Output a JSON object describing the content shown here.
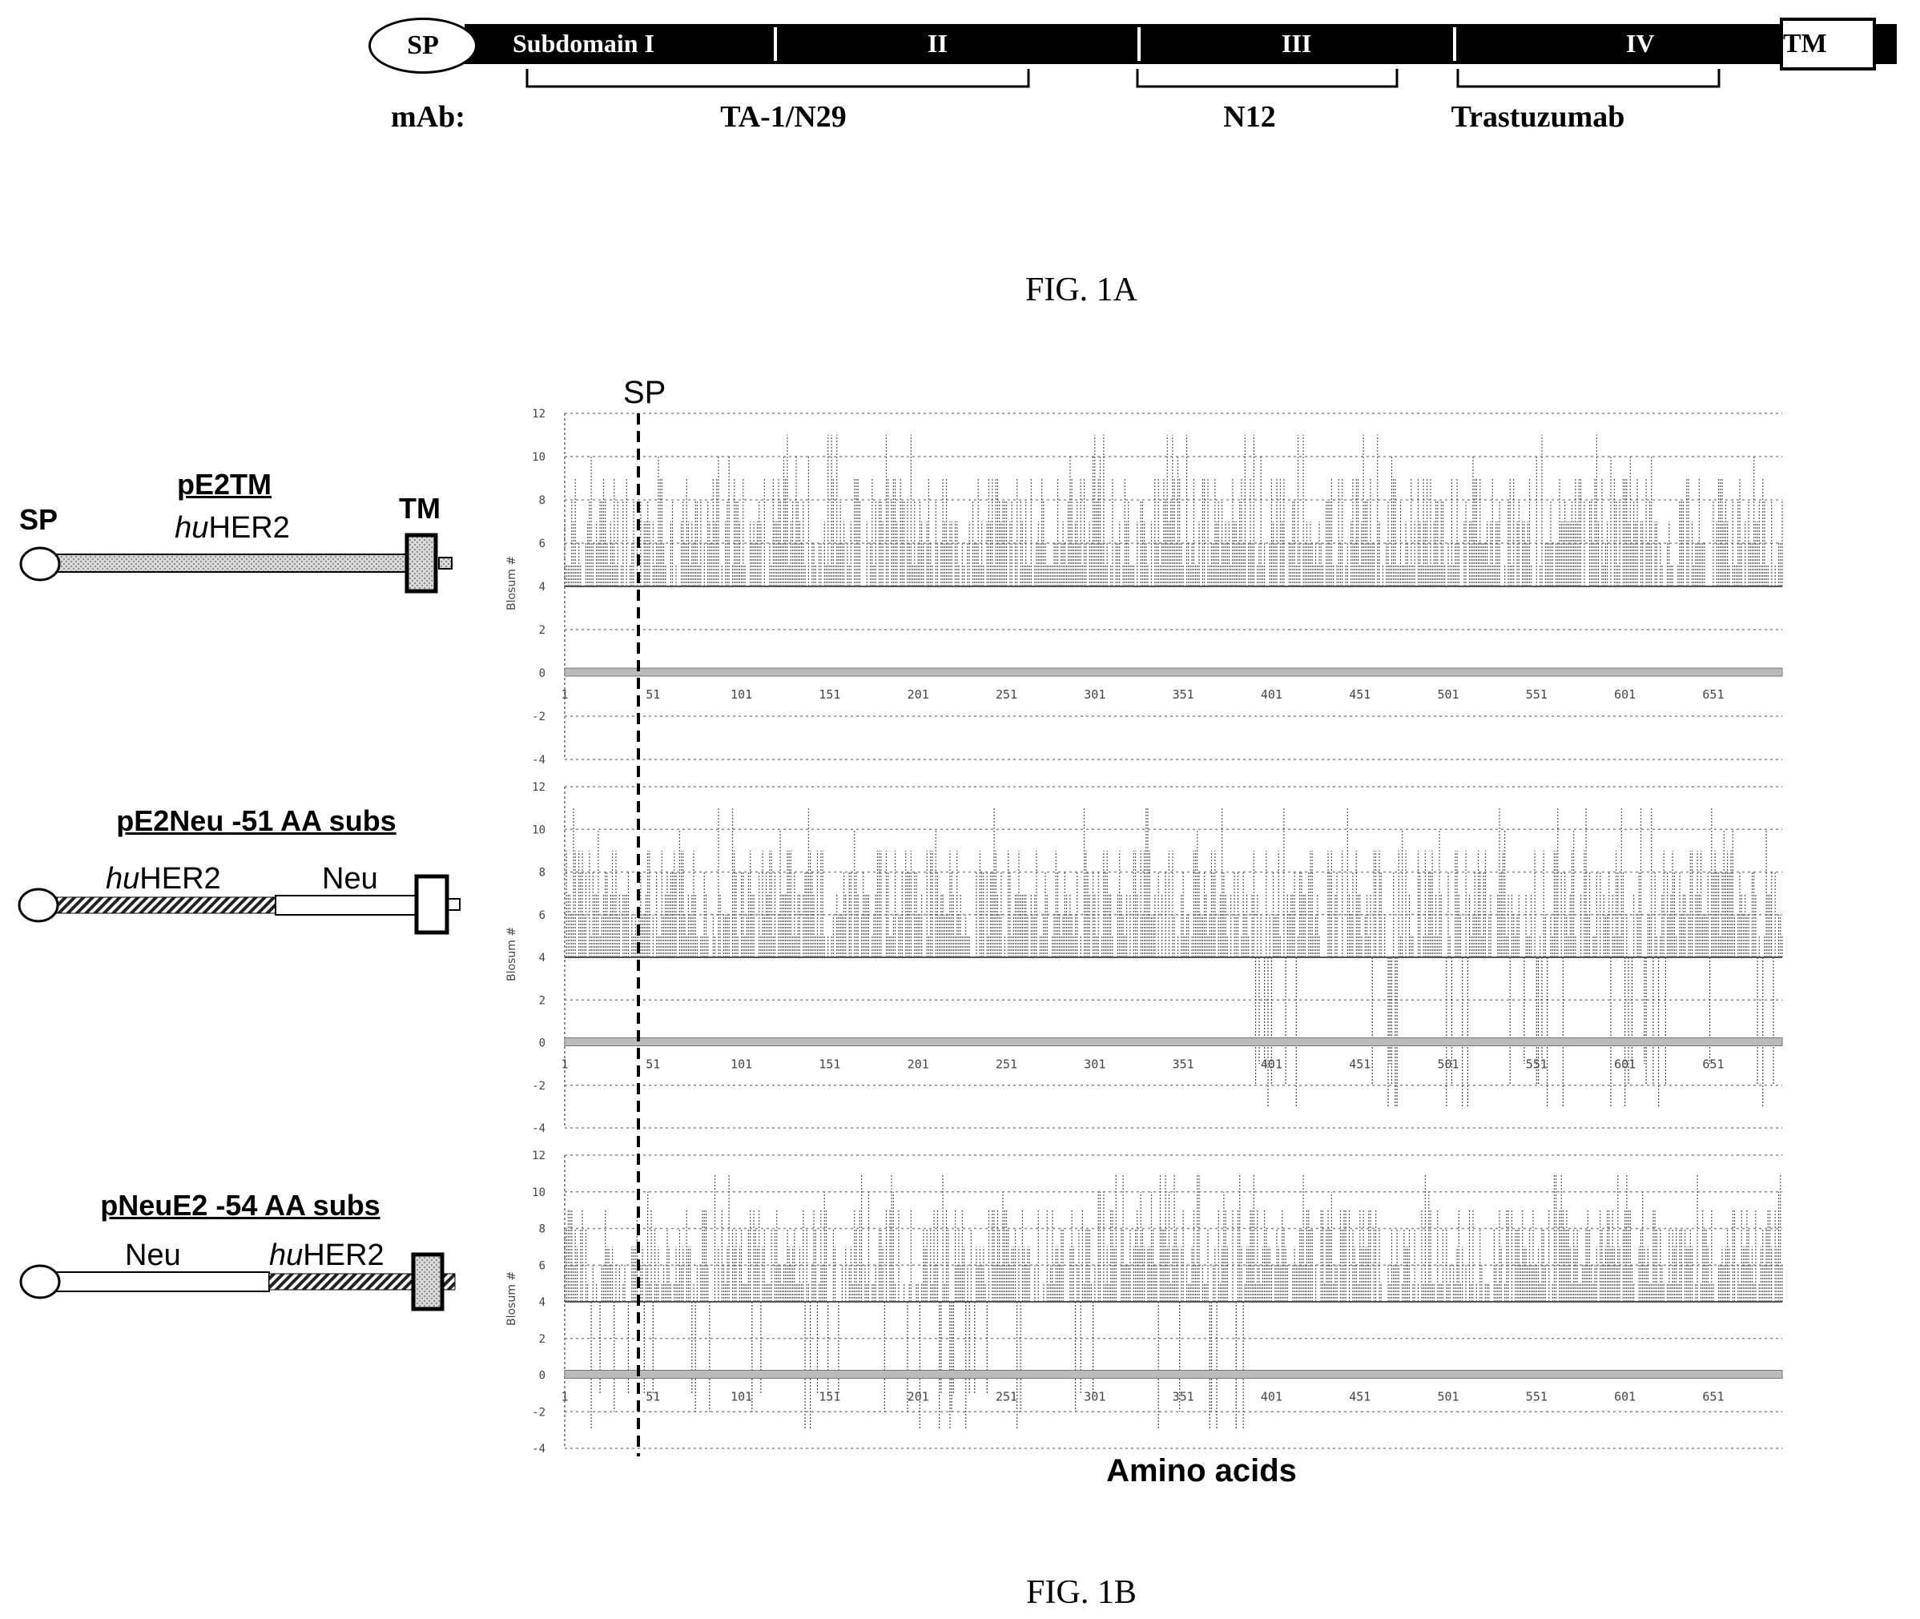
{
  "fig1a": {
    "caption": "FIG. 1A",
    "signal_peptide": "SP",
    "subdomains": [
      "Subdomain I",
      "II",
      "III",
      "IV"
    ],
    "transmembrane": "TM",
    "mab_label": "mAb:",
    "mab_epitopes": [
      "TA-1/N29",
      "N12",
      "Trastuzumab"
    ]
  },
  "fig1b": {
    "caption": "FIG. 1B",
    "sp_marker": "SP",
    "x_axis_title": "Amino acids",
    "y_axis_label": "Blosum #",
    "constructs": [
      {
        "name": "pE2TM",
        "left_label": "SP",
        "mid_label_italic": "hu",
        "mid_label": "HER2",
        "right_label": "TM"
      },
      {
        "name": "pE2Neu -51 AA subs",
        "label_1_italic": "hu",
        "label_1": "HER2",
        "label_2": "Neu"
      },
      {
        "name": "pNeuE2 -54 AA subs",
        "label_1": "Neu",
        "label_2_italic": "hu",
        "label_2": "HER2"
      }
    ]
  },
  "chart_data": [
    {
      "type": "bar",
      "name": "pE2TM",
      "ylabel": "Blosum #",
      "ylim": [
        -4,
        12
      ],
      "yticks": [
        12,
        10,
        8,
        6,
        4,
        2,
        0,
        -2,
        -4
      ],
      "xticks": [
        "1",
        "51",
        "101",
        "151",
        "201",
        "251",
        "301",
        "351",
        "401",
        "451",
        "501",
        "551",
        "601",
        "651"
      ],
      "x_range": [
        1,
        690
      ],
      "substituted_regions": [],
      "values_description": "Blosum scores mostly between 4 and 11 across all positions"
    },
    {
      "type": "bar",
      "name": "pE2Neu -51 AA subs",
      "ylabel": "Blosum #",
      "ylim": [
        -4,
        12
      ],
      "yticks": [
        12,
        10,
        8,
        6,
        4,
        2,
        0,
        -2,
        -4
      ],
      "xticks": [
        "1",
        "51",
        "101",
        "151",
        "201",
        "251",
        "301",
        "351",
        "401",
        "451",
        "501",
        "551",
        "601",
        "651"
      ],
      "x_range": [
        1,
        690
      ],
      "substituted_regions": [
        [
          390,
          690
        ]
      ],
      "values_description": "scores 4-11; negative dips down to about -4 in positions after ~390"
    },
    {
      "type": "bar",
      "name": "pNeuE2 -54 AA subs",
      "ylabel": "Blosum #",
      "ylim": [
        -4,
        12
      ],
      "yticks": [
        12,
        10,
        8,
        6,
        4,
        2,
        0,
        -2,
        -4
      ],
      "xticks": [
        "1",
        "51",
        "101",
        "151",
        "201",
        "251",
        "301",
        "351",
        "401",
        "451",
        "501",
        "551",
        "601",
        "651"
      ],
      "x_range": [
        1,
        690
      ],
      "substituted_regions": [
        [
          1,
          400
        ]
      ],
      "values_description": "scores 4-11; negative dips down to about -4 in positions before ~400"
    }
  ]
}
